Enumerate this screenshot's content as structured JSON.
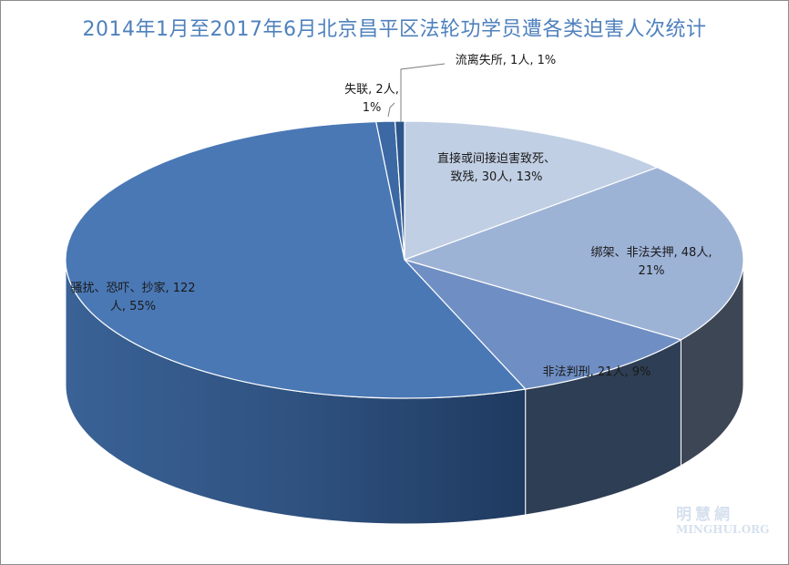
{
  "chart_data": {
    "type": "pie",
    "title": "2014年1月至2017年6月北京昌平区法轮功学员遭各类迫害人次统计",
    "slices": [
      {
        "key": "death",
        "label_lines": [
          "直接或间接迫害致死、",
          "致残, 30人, 13%"
        ],
        "value": 30,
        "percent": 13,
        "color": "#c1cfe4"
      },
      {
        "key": "detain",
        "label_lines": [
          "绑架、非法关押, 48人,",
          "21%"
        ],
        "value": 48,
        "percent": 21,
        "color": "#9db3d6"
      },
      {
        "key": "sentence",
        "label_lines": [
          "非法判刑, 21人, 9%"
        ],
        "value": 21,
        "percent": 9,
        "color": "#6f8fc4"
      },
      {
        "key": "harass",
        "label_lines": [
          "骚扰、恐吓、抄家, 122",
          "人, 55%"
        ],
        "value": 122,
        "percent": 55,
        "color": "#4a78b5"
      },
      {
        "key": "missing",
        "label_lines": [
          "失联, 2人,",
          "1%"
        ],
        "value": 2,
        "percent": 1,
        "color": "#3c69a4"
      },
      {
        "key": "displaced",
        "label_lines": [
          "流离失所, 1人, 1%"
        ],
        "value": 1,
        "percent": 1,
        "color": "#2d568c"
      }
    ]
  },
  "watermark": {
    "cn": "明慧網",
    "en": "MINGHUI.ORG"
  }
}
